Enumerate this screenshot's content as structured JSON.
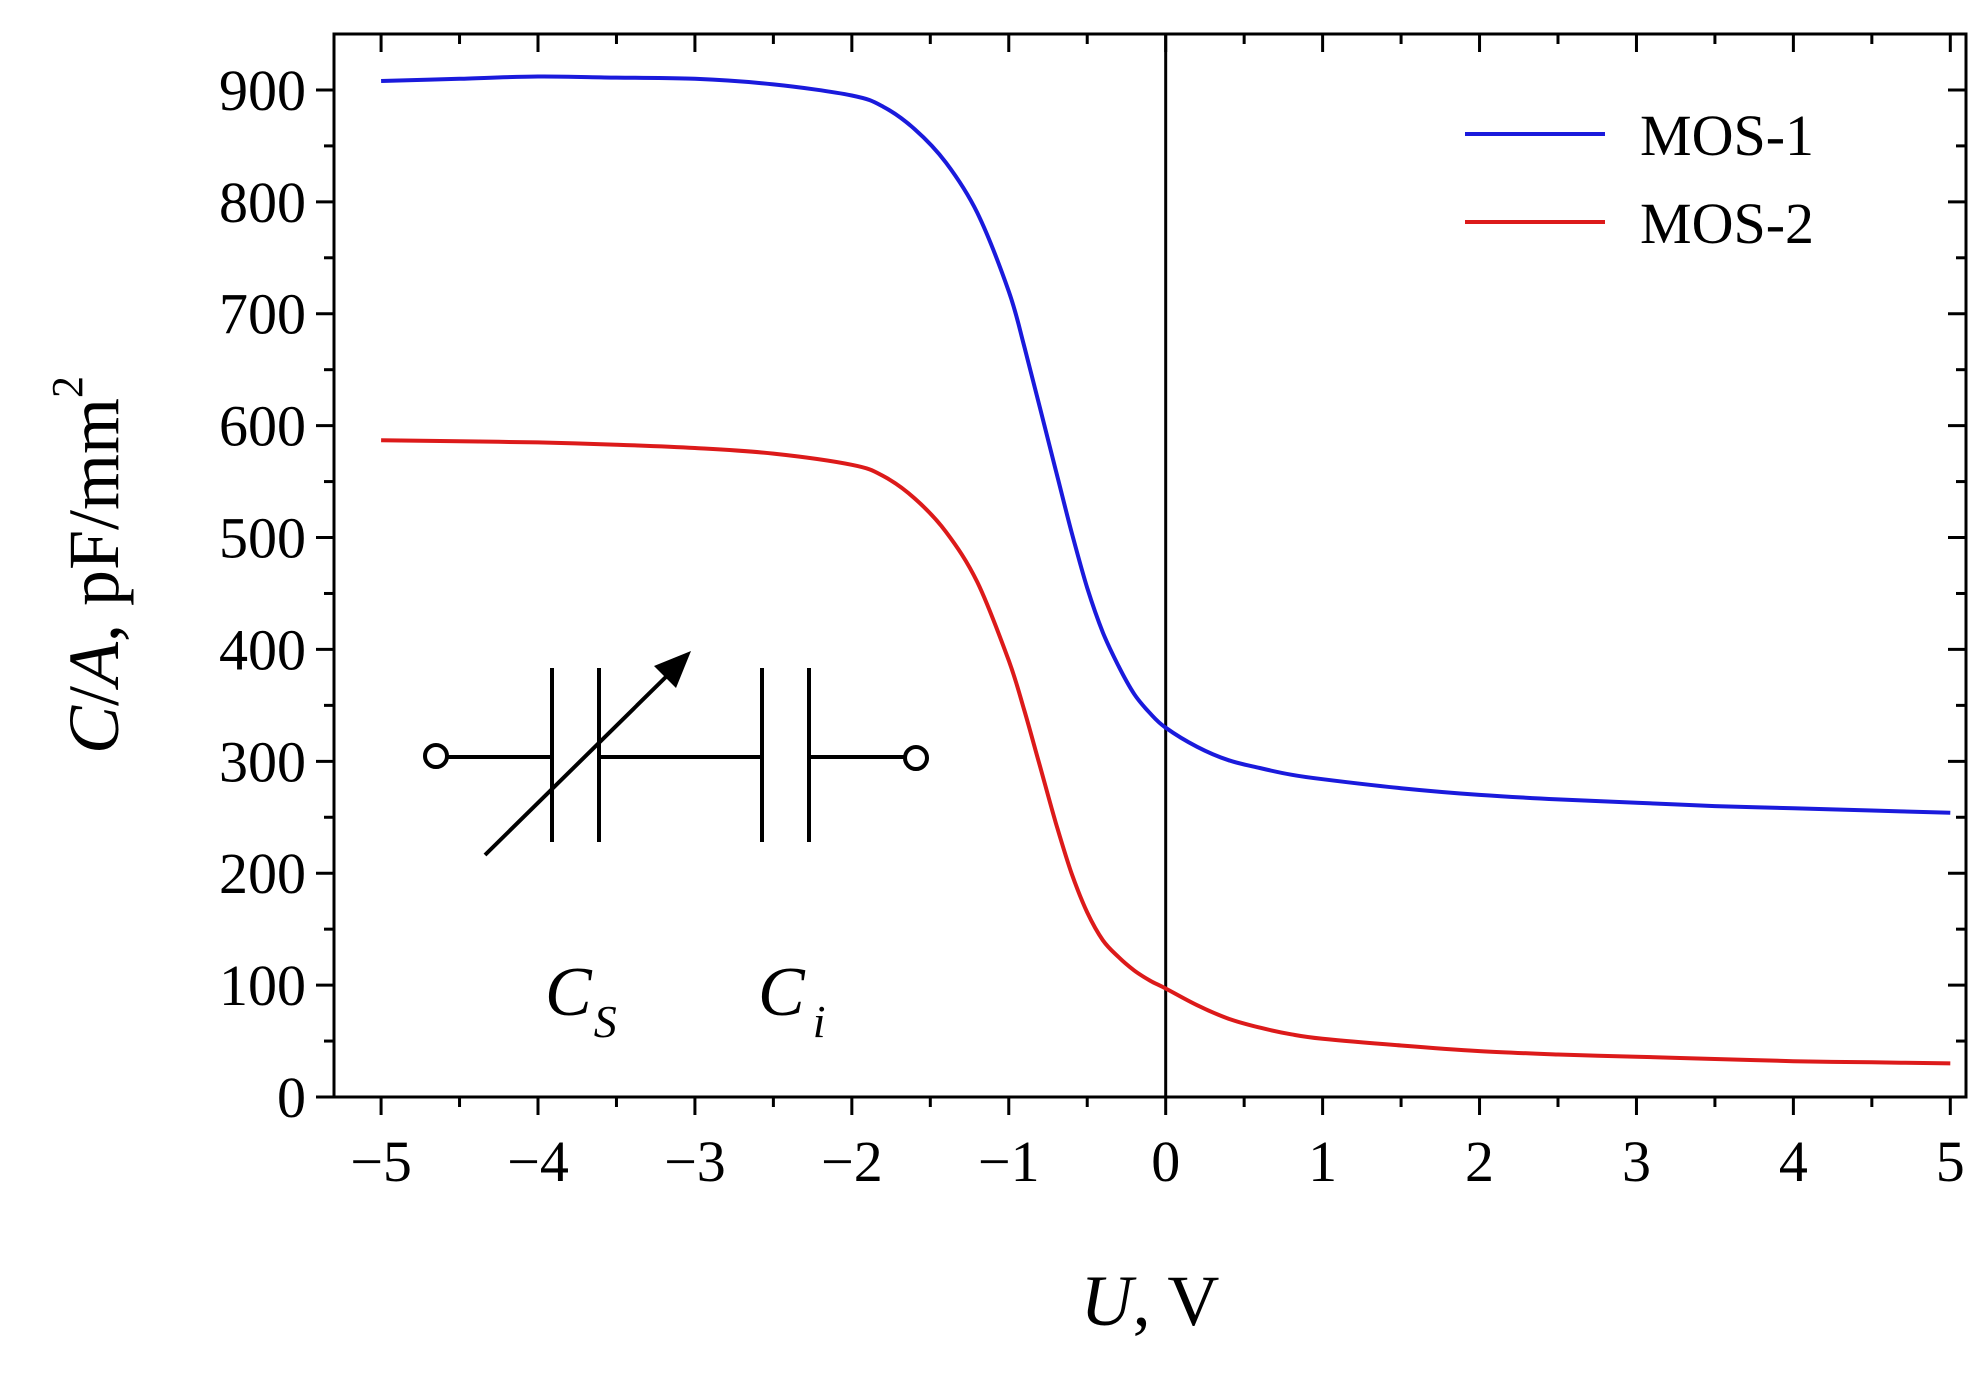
{
  "chart_data": {
    "type": "line",
    "xlabel": {
      "var": "U",
      "rest": ", V"
    },
    "ylabel": {
      "var1": "C",
      "sep": "/",
      "var2": "A",
      "rest": ", pF/mm",
      "sup": "2"
    },
    "xlim": [
      -5.3,
      5.1
    ],
    "ylim": [
      0,
      950
    ],
    "xticks": [
      -5,
      -4,
      -3,
      -2,
      -1,
      0,
      1,
      2,
      3,
      4,
      5
    ],
    "xtick_labels": [
      "−5",
      "−4",
      "−3",
      "−2",
      "−1",
      "0",
      "1",
      "2",
      "3",
      "4",
      "5"
    ],
    "yticks": [
      0,
      100,
      200,
      300,
      400,
      500,
      600,
      700,
      800,
      900
    ],
    "ytick_labels": [
      "0",
      "100",
      "200",
      "300",
      "400",
      "500",
      "600",
      "700",
      "800",
      "900"
    ],
    "grid": false,
    "legend_position": "top-right",
    "vline_x": 0,
    "series": [
      {
        "name": "MOS-1",
        "color": "#1a1adc",
        "x": [
          -5,
          -4.5,
          -4,
          -3.5,
          -3,
          -2.5,
          -2,
          -1.8,
          -1.6,
          -1.4,
          -1.2,
          -1,
          -0.9,
          -0.8,
          -0.7,
          -0.6,
          -0.5,
          -0.4,
          -0.3,
          -0.2,
          -0.1,
          0,
          0.2,
          0.4,
          0.6,
          0.8,
          1,
          1.5,
          2,
          2.5,
          3,
          3.5,
          4,
          4.5,
          5
        ],
        "y": [
          908,
          910,
          912,
          911,
          910,
          905,
          895,
          885,
          865,
          835,
          790,
          720,
          670,
          615,
          560,
          505,
          455,
          415,
          385,
          360,
          343,
          330,
          313,
          301,
          294,
          288,
          284,
          276,
          270,
          266,
          263,
          260,
          258,
          256,
          254
        ]
      },
      {
        "name": "MOS-2",
        "color": "#dc1a1a",
        "x": [
          -5,
          -4.5,
          -4,
          -3.5,
          -3,
          -2.5,
          -2,
          -1.8,
          -1.6,
          -1.4,
          -1.2,
          -1,
          -0.9,
          -0.8,
          -0.7,
          -0.6,
          -0.5,
          -0.4,
          -0.3,
          -0.2,
          -0.1,
          0,
          0.2,
          0.4,
          0.6,
          0.8,
          1,
          1.5,
          2,
          2.5,
          3,
          3.5,
          4,
          4.5,
          5
        ],
        "y": [
          587,
          586,
          585,
          583,
          580,
          575,
          565,
          555,
          535,
          505,
          460,
          390,
          345,
          295,
          245,
          200,
          165,
          140,
          125,
          113,
          104,
          97,
          82,
          70,
          62,
          56,
          52,
          46,
          41,
          38,
          36,
          34,
          32,
          31,
          30
        ]
      }
    ]
  },
  "inset": {
    "cs_main": "C",
    "cs_sub": "S",
    "ci_main": "C",
    "ci_sub": "i"
  }
}
